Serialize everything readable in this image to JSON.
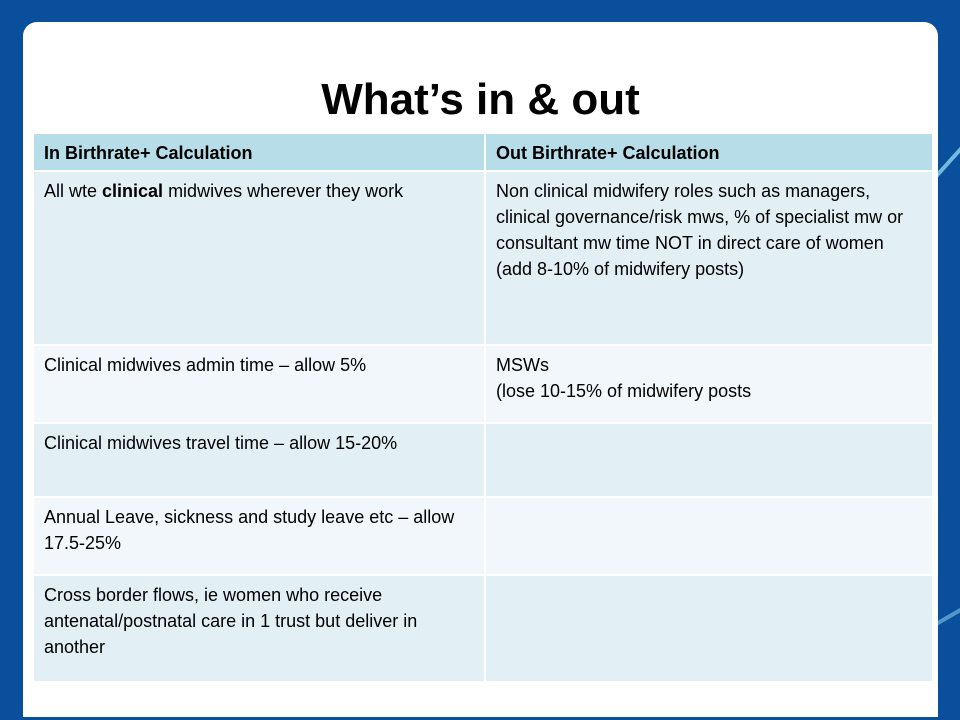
{
  "slide": {
    "title": "What’s in & out"
  },
  "table": {
    "headers": [
      "In Birthrate+ Calculation",
      "Out Birthrate+ Calculation"
    ],
    "rows": [
      {
        "in": {
          "prefix": "All wte ",
          "emphasis": "clinical",
          "suffix": " midwives wherever they work"
        },
        "out": [
          "Non clinical midwifery roles such as managers, clinical governance/risk mws, % of specialist mw or consultant mw time NOT in direct care of women",
          "(add 8-10% of midwifery posts)"
        ]
      },
      {
        "in": "Clinical midwives admin time – allow 5%",
        "out": [
          "MSWs",
          "(lose 10-15% of midwifery posts"
        ]
      },
      {
        "in": "Clinical midwives travel time – allow 15-20%",
        "out": ""
      },
      {
        "in": "Annual Leave, sickness and study leave etc – allow 17.5-25%",
        "out": ""
      },
      {
        "in": "Cross border flows, ie women who receive antenatal/postnatal care in 1 trust but deliver in another",
        "out": ""
      }
    ]
  },
  "colors": {
    "background": "#0a4f9c",
    "header_fill": "#b7dde8",
    "row_fill_a": "#e2f0f5",
    "row_fill_b": "#f1f7fa"
  }
}
